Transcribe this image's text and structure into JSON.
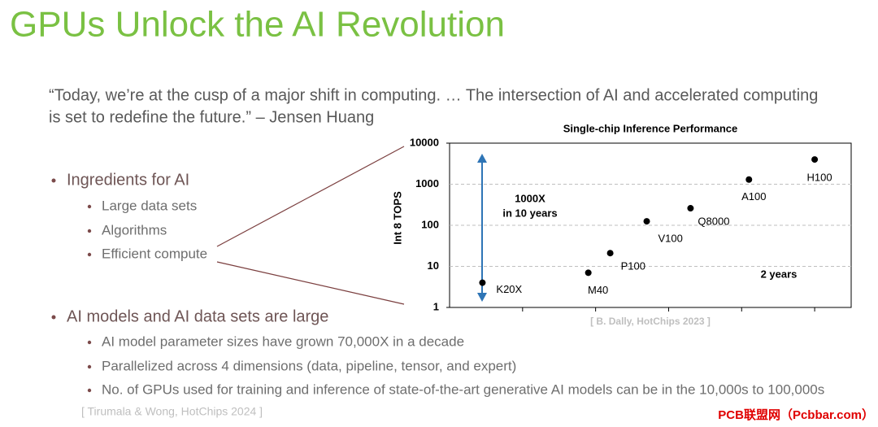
{
  "title": "GPUs Unlock the AI Revolution",
  "quote_lines": [
    "“Today, we’re at the cusp of a major shift in computing. … The intersection of AI and accelerated computing",
    "is set to redefine the future.” – Jensen Huang"
  ],
  "bullets": [
    {
      "text": "Ingredients for AI",
      "items": [
        "Large data sets",
        "Algorithms",
        "Efficient compute"
      ]
    },
    {
      "text": "AI models and AI data sets are large",
      "items": [
        "AI model parameter sizes have grown 70,000X in a decade",
        "Parallelized across 4 dimensions (data, pipeline, tensor, and expert)",
        "No. of GPUs used for training and inference of state-of-the-art generative AI models can be in the 10,000s to 100,000s"
      ]
    }
  ],
  "citation": "[ Tirumala & Wong, HotChips 2024 ]",
  "watermark": "PCB联盟网（Pcbbar.com）",
  "chart_data": {
    "type": "scatter",
    "title": "Single-chip Inference Performance",
    "y_label": "Int 8 TOPS",
    "x": [
      2012.9,
      2015.8,
      2016.4,
      2017.4,
      2018.6,
      2020.2,
      2022.0
    ],
    "values": [
      4,
      7,
      21,
      125,
      260,
      1300,
      4000
    ],
    "point_labels": [
      "K20X",
      "M40",
      "P100",
      "V100",
      "Q8000",
      "A100",
      "H100"
    ],
    "color": "#000000",
    "xlim": [
      2012,
      2023
    ],
    "xticks": [
      2014,
      2016,
      2018,
      2020,
      2022
    ],
    "ylim": [
      1,
      10000
    ],
    "yticks": [
      1,
      10,
      100,
      1000,
      10000
    ],
    "log_scale": true,
    "grid": true,
    "annotations": [
      "1000X",
      "in 10 years",
      "2 years"
    ],
    "source": "[ B. Dally, HotChips 2023 ]"
  }
}
